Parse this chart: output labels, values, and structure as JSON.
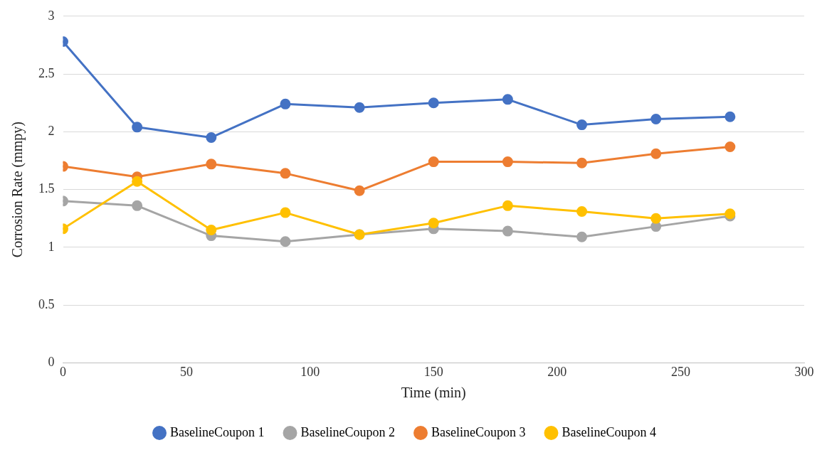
{
  "chart_data": {
    "type": "line",
    "xlabel": "Time (min)",
    "ylabel": "Corrosion Rate (mmpy)",
    "x": [
      0,
      30,
      60,
      90,
      120,
      150,
      180,
      210,
      240,
      270
    ],
    "series": [
      {
        "name": "BaselineCoupon 1",
        "color": "#4472c4",
        "values": [
          2.78,
          2.04,
          1.95,
          2.24,
          2.21,
          2.25,
          2.28,
          2.06,
          2.11,
          2.13
        ]
      },
      {
        "name": "BaselineCoupon 2",
        "color": "#a5a5a5",
        "values": [
          1.4,
          1.36,
          1.1,
          1.05,
          1.11,
          1.16,
          1.14,
          1.09,
          1.18,
          1.27
        ]
      },
      {
        "name": "BaselineCoupon 3",
        "color": "#ed7d31",
        "values": [
          1.7,
          1.61,
          1.72,
          1.64,
          1.49,
          1.74,
          1.74,
          1.73,
          1.81,
          1.87
        ]
      },
      {
        "name": "BaselineCoupon 4",
        "color": "#ffc000",
        "values": [
          1.16,
          1.57,
          1.15,
          1.3,
          1.11,
          1.21,
          1.36,
          1.31,
          1.25,
          1.29
        ]
      }
    ],
    "xlim": [
      0,
      300
    ],
    "xticks": [
      0,
      50,
      100,
      150,
      200,
      250,
      300
    ],
    "ylim": [
      0,
      3
    ],
    "yticks": [
      0,
      0.5,
      1,
      1.5,
      2,
      2.5,
      3
    ],
    "grid": "y",
    "legend": "bottom",
    "marker": "circle",
    "line_style": "solid"
  }
}
